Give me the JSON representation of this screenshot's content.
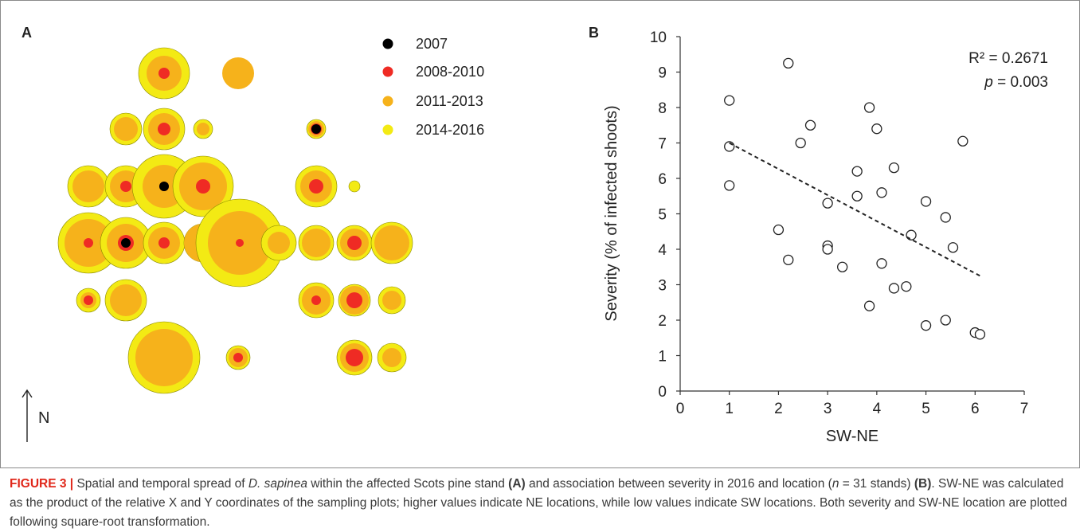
{
  "panel_a": {
    "label": "A",
    "north_label": "N",
    "legend": [
      {
        "label": "2007",
        "color": "#000000"
      },
      {
        "label": "2008-2010",
        "color": "#ef2b24"
      },
      {
        "label": "2011-2013",
        "color": "#f6b21b"
      },
      {
        "label": "2014-2016",
        "color": "#f3ea14"
      }
    ],
    "plots": [
      {
        "y": 2016,
        "x": 2011,
        "b": 2010,
        "a": 0
      },
      {
        "y": 0,
        "x": 2011,
        "b": 0,
        "a": 0
      },
      {
        "y": 2016,
        "x": 2011,
        "b": 0,
        "a": 0
      },
      {
        "y": 2016,
        "x": 2011,
        "b": 2010,
        "a": 0
      },
      {
        "y": 2016,
        "x": 2011,
        "b": 0,
        "a": 0
      },
      {
        "y": 2016,
        "x": 2011,
        "b": 2010,
        "a": 2007
      },
      {
        "y": 2016,
        "x": 2011,
        "b": 0,
        "a": 0
      },
      {
        "y": 2016,
        "x": 2011,
        "b": 2010,
        "a": 0
      },
      {
        "y": 2016,
        "x": 2011,
        "b": 2010,
        "a": 2007
      },
      {
        "y": 2016,
        "x": 2011,
        "b": 2010,
        "a": 0
      },
      {
        "y": 2016,
        "x": 2011,
        "b": 2010,
        "a": 0
      },
      {
        "y": 2016,
        "x": 0,
        "b": 0,
        "a": 0
      },
      {
        "y": 2016,
        "x": 2011,
        "b": 2010,
        "a": 0
      },
      {
        "y": 2016,
        "x": 2011,
        "b": 2010,
        "a": 2007
      },
      {
        "y": 2016,
        "x": 2011,
        "b": 2010,
        "a": 0
      },
      {
        "y": 2016,
        "x": 2011,
        "b": 0,
        "a": 0
      },
      {
        "y": 2016,
        "x": 2011,
        "b": 2010,
        "a": 0
      },
      {
        "y": 2016,
        "x": 2011,
        "b": 0,
        "a": 0
      },
      {
        "y": 2016,
        "x": 2011,
        "b": 0,
        "a": 0
      },
      {
        "y": 2016,
        "x": 2011,
        "b": 2010,
        "a": 0
      },
      {
        "y": 2016,
        "x": 2011,
        "b": 0,
        "a": 0
      },
      {
        "y": 2016,
        "x": 2011,
        "b": 2010,
        "a": 0
      },
      {
        "y": 2016,
        "x": 2011,
        "b": 0,
        "a": 0
      },
      {
        "y": 2016,
        "x": 2011,
        "b": 2010,
        "a": 0
      },
      {
        "y": 2016,
        "x": 2011,
        "b": 2010,
        "a": 0
      },
      {
        "y": 2016,
        "x": 2011,
        "b": 0,
        "a": 0
      },
      {
        "y": 2016,
        "x": 2011,
        "b": 0,
        "a": 0
      },
      {
        "y": 2016,
        "x": 2011,
        "b": 2010,
        "a": 0
      },
      {
        "y": 2016,
        "x": 2011,
        "b": 2010,
        "a": 0
      },
      {
        "y": 2016,
        "x": 2011,
        "b": 0,
        "a": 0
      }
    ]
  },
  "chart_data": {
    "type": "scatter",
    "panel_label": "B",
    "xlabel": "SW-NE",
    "ylabel": "Severity (% of infected shoots)",
    "xlim": [
      0,
      7
    ],
    "ylim": [
      0,
      10
    ],
    "xticks": [
      0,
      1,
      2,
      3,
      4,
      5,
      6,
      7
    ],
    "yticks": [
      0,
      1,
      2,
      3,
      4,
      5,
      6,
      7,
      8,
      9,
      10
    ],
    "annotation_r2": "R² = 0.2671",
    "annotation_p_symbol": "p",
    "annotation_p_value": " = 0.003",
    "points": [
      [
        1.0,
        8.2
      ],
      [
        1.0,
        6.9
      ],
      [
        1.0,
        5.8
      ],
      [
        2.2,
        9.25
      ],
      [
        2.65,
        7.5
      ],
      [
        2.45,
        7.0
      ],
      [
        2.0,
        4.55
      ],
      [
        2.2,
        3.7
      ],
      [
        3.0,
        5.3
      ],
      [
        3.0,
        4.1
      ],
      [
        3.0,
        4.0
      ],
      [
        3.3,
        3.5
      ],
      [
        3.6,
        6.2
      ],
      [
        3.6,
        5.5
      ],
      [
        3.85,
        8.0
      ],
      [
        4.0,
        7.4
      ],
      [
        4.1,
        5.6
      ],
      [
        4.1,
        3.6
      ],
      [
        3.85,
        2.4
      ],
      [
        4.35,
        6.3
      ],
      [
        4.35,
        2.9
      ],
      [
        4.6,
        2.95
      ],
      [
        4.7,
        4.4
      ],
      [
        5.0,
        5.35
      ],
      [
        5.0,
        1.85
      ],
      [
        5.4,
        4.9
      ],
      [
        5.4,
        2.0
      ],
      [
        5.55,
        4.05
      ],
      [
        5.75,
        7.05
      ],
      [
        6.0,
        1.65
      ],
      [
        6.1,
        1.6
      ]
    ],
    "trendline": [
      [
        1.0,
        7.0
      ],
      [
        6.1,
        3.25
      ]
    ]
  },
  "caption": {
    "label": "FIGURE 3 |",
    "t1": " Spatial and temporal spread of ",
    "t2": "D. sapinea",
    "t3": " within the affected Scots pine stand ",
    "t4": "(A)",
    "t5": " and association between severity in 2016 and location (",
    "t6": "n",
    "t7": " = 31 stands) ",
    "t8": "(B)",
    "t9": ". SW-NE was calculated as the product of the relative X and Y coordinates of the sampling plots; higher values indicate NE locations, while low values indicate SW locations. Both severity and SW-NE location are plotted following square-root transformation."
  }
}
